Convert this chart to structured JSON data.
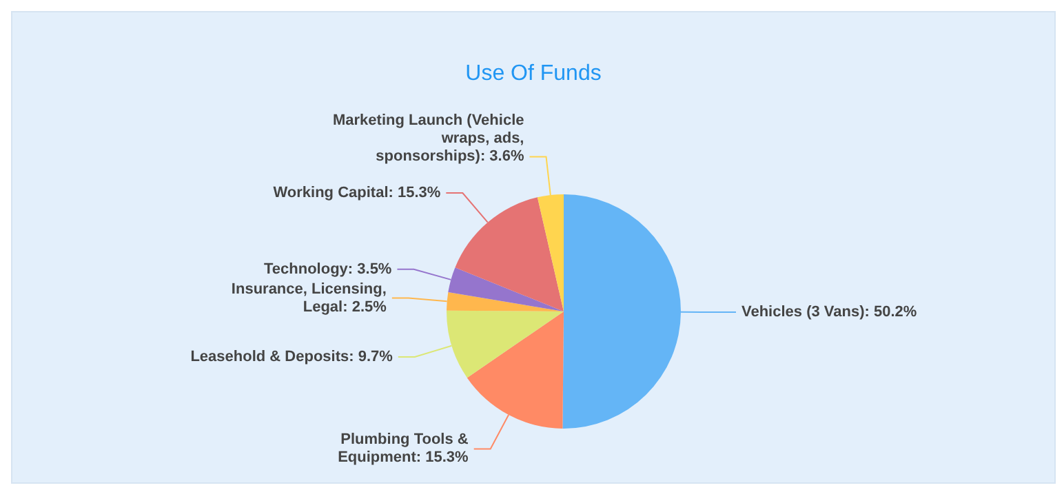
{
  "chart_data": {
    "type": "pie",
    "title": "Use Of Funds",
    "categories": [
      "Vehicles (3 Vans)",
      "Plumbing Tools & Equipment",
      "Leasehold & Deposits",
      "Insurance, Licensing, Legal",
      "Technology",
      "Working Capital",
      "Marketing Launch (Vehicle wraps, ads, sponsorships)"
    ],
    "values": [
      50.2,
      15.3,
      9.7,
      2.5,
      3.5,
      15.3,
      3.6
    ],
    "value_labels": [
      "50.2%",
      "15.3%",
      "9.7%",
      "2.5%",
      "3.5%",
      "15.3%",
      "3.6%"
    ],
    "colors": [
      "#64b5f6",
      "#ff8a65",
      "#dce775",
      "#ffb74d",
      "#9575cd",
      "#e57373",
      "#ffd54f"
    ]
  }
}
